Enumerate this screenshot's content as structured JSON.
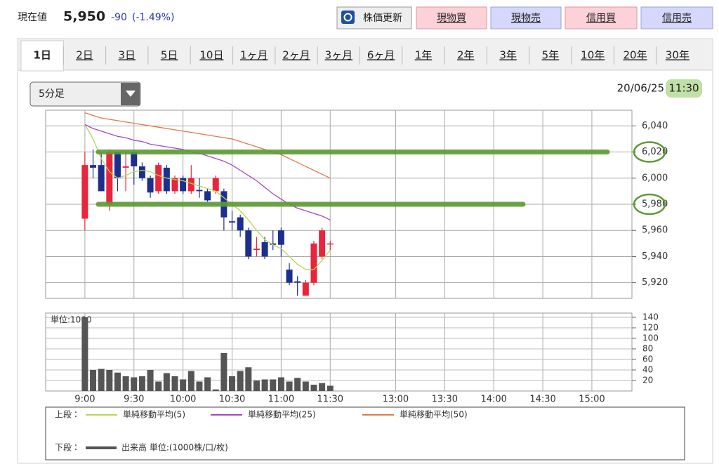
{
  "header": {
    "label": "現在値",
    "price": "5,950",
    "change": "-90",
    "change_pct": "(-1.49%)"
  },
  "buttons": [
    "株価更新",
    "現物買",
    "現物売",
    "信用買",
    "信用売"
  ],
  "tabs": [
    "1日",
    "2日",
    "3日",
    "5日",
    "10日",
    "1ヶ月",
    "2ヶ月",
    "3ヶ月",
    "6ヶ月",
    "1年",
    "2年",
    "3年",
    "5年",
    "10年",
    "20年",
    "30年"
  ],
  "toolbar": {
    "interval": "5分足",
    "date": "20/06/25",
    "time": "11:30"
  },
  "chart_data": [
    {
      "type": "candlestick",
      "legend_label": "上段：",
      "x": [
        0,
        1,
        2,
        3,
        4,
        5,
        6,
        7,
        8,
        9,
        10,
        11,
        12,
        13,
        14,
        15,
        16,
        17,
        18,
        19,
        20,
        21,
        22,
        23,
        24,
        25,
        26,
        27,
        28,
        29,
        30
      ],
      "open": [
        5969,
        6010,
        6010,
        5980,
        6020,
        6008,
        6020,
        6009,
        6000,
        5990,
        6008,
        5990,
        6000,
        5990,
        5991,
        5990,
        5990,
        5990,
        5967,
        5970,
        5960,
        5945,
        5951,
        5950,
        5960,
        5930,
        5921,
        5910,
        5920,
        5940,
        5950
      ],
      "high": [
        6020,
        6022,
        6020,
        6022,
        6020,
        6020,
        6020,
        6012,
        6002,
        6012,
        6010,
        6002,
        6002,
        6010,
        6000,
        5992,
        6002,
        5992,
        5975,
        5972,
        5962,
        5955,
        5955,
        5960,
        5962,
        5935,
        5925,
        5922,
        5952,
        5962,
        5952
      ],
      "low": [
        5960,
        6000,
        5990,
        5975,
        5990,
        5990,
        5995,
        5998,
        5985,
        5988,
        5988,
        5988,
        5988,
        5988,
        5985,
        5982,
        5988,
        5960,
        5960,
        5955,
        5938,
        5940,
        5938,
        5945,
        5940,
        5918,
        5910,
        5910,
        5918,
        5938,
        5945
      ],
      "close": [
        6010,
        6008,
        5990,
        6020,
        6000,
        6009,
        6009,
        6000,
        5989,
        6010,
        5990,
        6000,
        5990,
        6000,
        5990,
        5983,
        6000,
        5970,
        5966,
        5960,
        5940,
        5946,
        5940,
        5949,
        5949,
        5920,
        5920,
        5920,
        5950,
        5960,
        5950
      ],
      "up_color": "#e8253b",
      "down_color": "#1c2f8e",
      "ma_series": [
        {
          "name": "単純移動平均(5)",
          "color": "#b8d356",
          "values": [
            6041,
            6030,
            6015,
            6005,
            6000,
            6002,
            6005,
            6006,
            6005,
            6002,
            6000,
            5999,
            5998,
            5996,
            5994,
            5992,
            5990,
            5985,
            5980,
            5975,
            5968,
            5960,
            5953,
            5949,
            5946,
            5940,
            5934,
            5930,
            5930,
            5937,
            5945
          ]
        },
        {
          "name": "単純移動平均(25)",
          "color": "#a547c8",
          "values": [
            6041,
            6038,
            6036,
            6034,
            6032,
            6031,
            6029,
            6028,
            6026,
            6025,
            6024,
            6023,
            6022,
            6020,
            6019,
            6017,
            6015,
            6013,
            6010,
            6006,
            6002,
            5998,
            5993,
            5988,
            5984,
            5980,
            5977,
            5975,
            5973,
            5971,
            5968
          ]
        },
        {
          "name": "単純移動平均(50)",
          "color": "#e07a4c",
          "values": [
            6050,
            6048,
            6046,
            6045,
            6044,
            6043,
            6042,
            6041,
            6040,
            6039,
            6038,
            6037,
            6036,
            6035,
            6034,
            6033,
            6032,
            6031,
            6030,
            6028,
            6026,
            6024,
            6022,
            6020,
            6018,
            6015,
            6012,
            6009,
            6006,
            6003,
            6000
          ]
        }
      ],
      "xlim": [
        -4.8,
        66.9
      ],
      "ylim": [
        5908,
        6052
      ],
      "yticks": [
        {
          "value": 5920,
          "label": "5,920"
        },
        {
          "value": 5940,
          "label": "5,940"
        },
        {
          "value": 5960,
          "label": "5,960"
        },
        {
          "value": 5980,
          "label": "5,980"
        },
        {
          "value": 6000,
          "label": "6,000"
        },
        {
          "value": 6020,
          "label": "6,020"
        },
        {
          "value": 6040,
          "label": "6,040"
        }
      ],
      "grid": true
    },
    {
      "type": "bar",
      "unit_label": "単位:1000",
      "legend_label": "下段：",
      "series_name": "出来高 単位:(1000株/口/枚)",
      "color": "#555555",
      "x": [
        0,
        1,
        2,
        3,
        4,
        5,
        6,
        7,
        8,
        9,
        10,
        11,
        12,
        13,
        14,
        15,
        16,
        17,
        18,
        19,
        20,
        21,
        22,
        23,
        24,
        25,
        26,
        27,
        28,
        29,
        30
      ],
      "values": [
        140,
        40,
        42,
        40,
        35,
        28,
        26,
        28,
        40,
        18,
        34,
        28,
        22,
        38,
        18,
        26,
        3,
        72,
        28,
        38,
        45,
        20,
        22,
        22,
        26,
        18,
        25,
        18,
        12,
        15,
        10
      ],
      "xlim": [
        -4.8,
        66.9
      ],
      "ylim": [
        0,
        148
      ],
      "yticks": [
        20,
        40,
        60,
        80,
        100,
        120,
        140
      ],
      "xticks": [
        {
          "value": 0,
          "label": "9:00"
        },
        {
          "value": 6,
          "label": "9:30"
        },
        {
          "value": 12,
          "label": "10:00"
        },
        {
          "value": 18,
          "label": "10:30"
        },
        {
          "value": 24,
          "label": "11:00"
        },
        {
          "value": 30,
          "label": "11:30"
        },
        {
          "value": 38,
          "label": "13:00"
        },
        {
          "value": 44,
          "label": "13:30"
        },
        {
          "value": 50,
          "label": "14:00"
        },
        {
          "value": 56,
          "label": "14:30"
        },
        {
          "value": 62,
          "label": "15:00"
        }
      ],
      "grid": true
    }
  ]
}
